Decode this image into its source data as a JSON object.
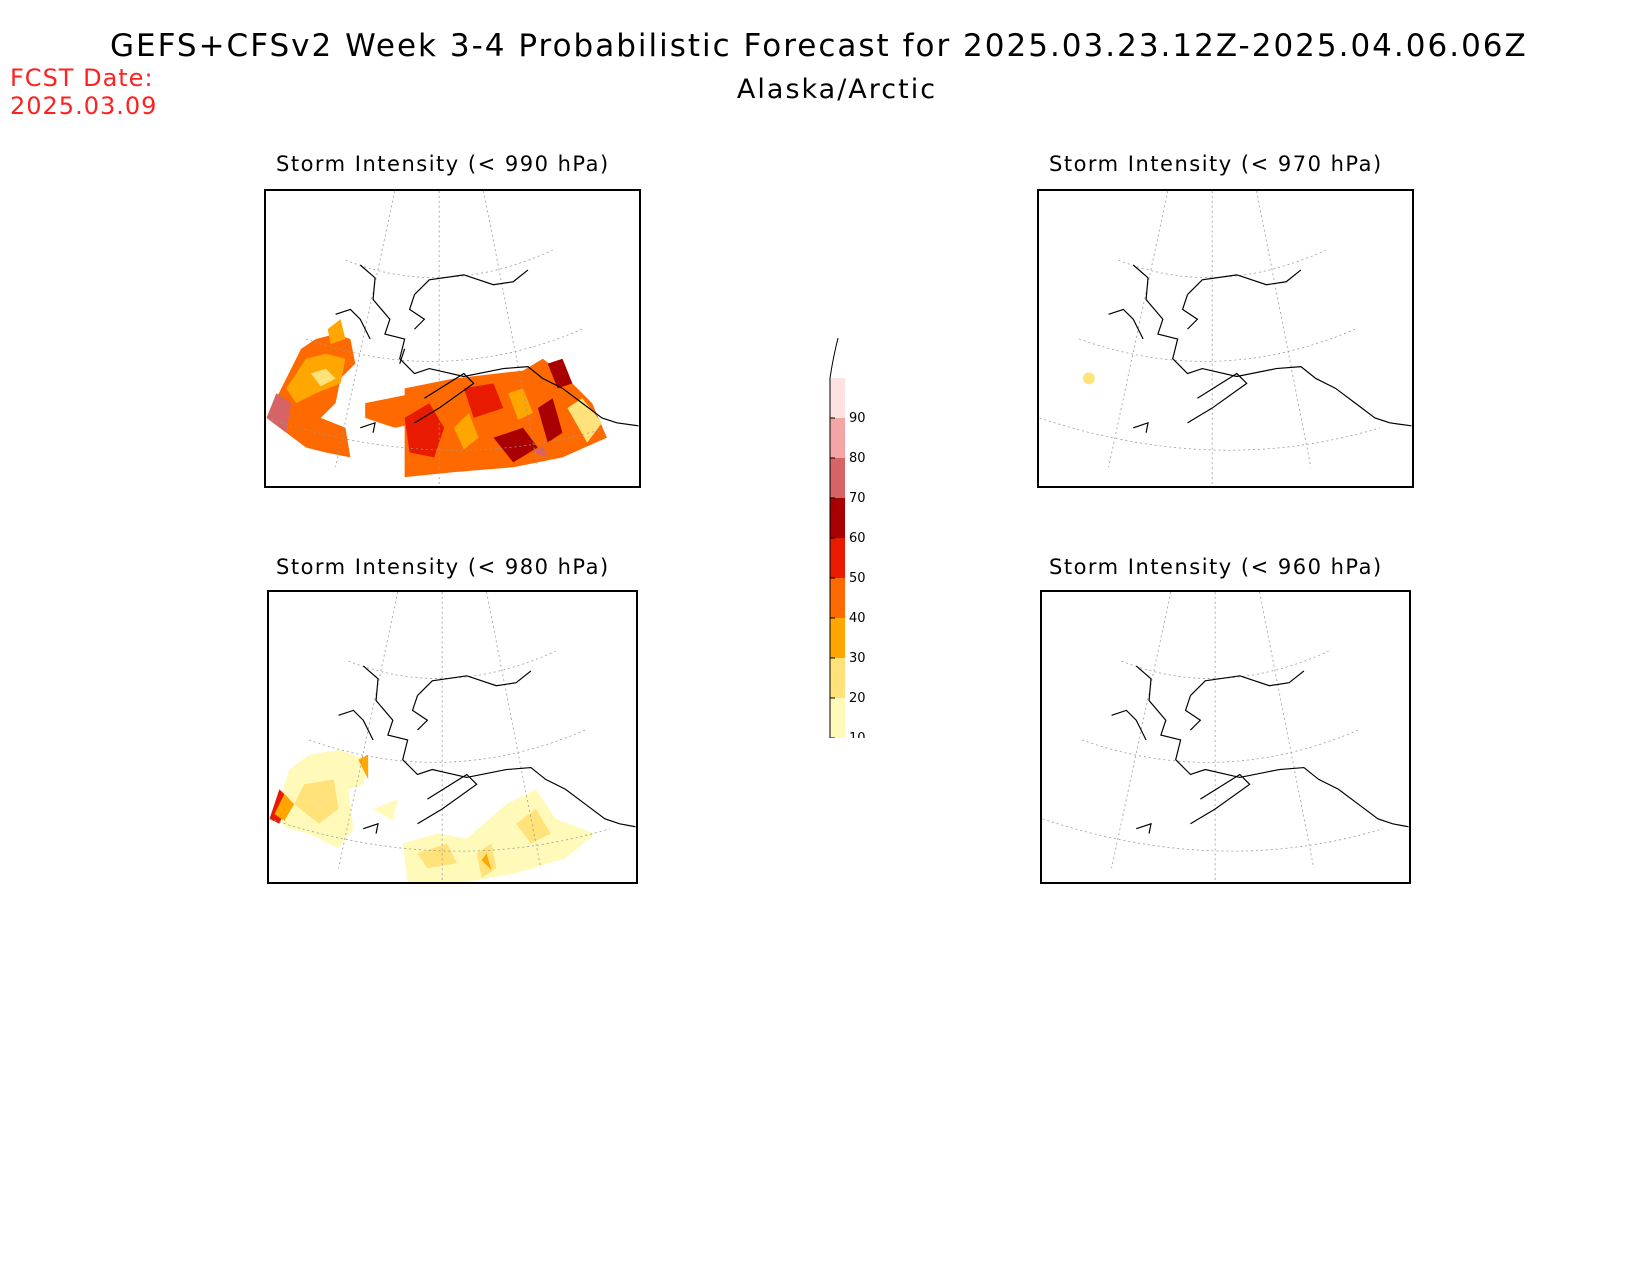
{
  "header": {
    "title": "GEFS+CFSv2 Week 3-4 Probabilistic Forecast for 2025.03.23.12Z-2025.04.06.06Z",
    "subtitle": "Alaska/Arctic",
    "fcst_date_label": "FCST Date:",
    "fcst_date_value": "2025.03.09"
  },
  "panels": [
    {
      "id": "p990",
      "title": "Storm Intensity (< 990 hPa)",
      "intensity": "high"
    },
    {
      "id": "p970",
      "title": "Storm Intensity (< 970 hPa)",
      "intensity": "trace"
    },
    {
      "id": "p980",
      "title": "Storm Intensity (< 980 hPa)",
      "intensity": "low"
    },
    {
      "id": "p960",
      "title": "Storm Intensity (< 960 hPa)",
      "intensity": "none"
    }
  ],
  "colorbar": {
    "levels": [
      "10",
      "20",
      "30",
      "40",
      "50",
      "60",
      "70",
      "80",
      "90"
    ],
    "colors": [
      "#fffaba",
      "#ffe27a",
      "#ffa600",
      "#ff6a00",
      "#e81a00",
      "#a80000",
      "#d76464",
      "#f4a6a6",
      "#fde2e2"
    ]
  }
}
